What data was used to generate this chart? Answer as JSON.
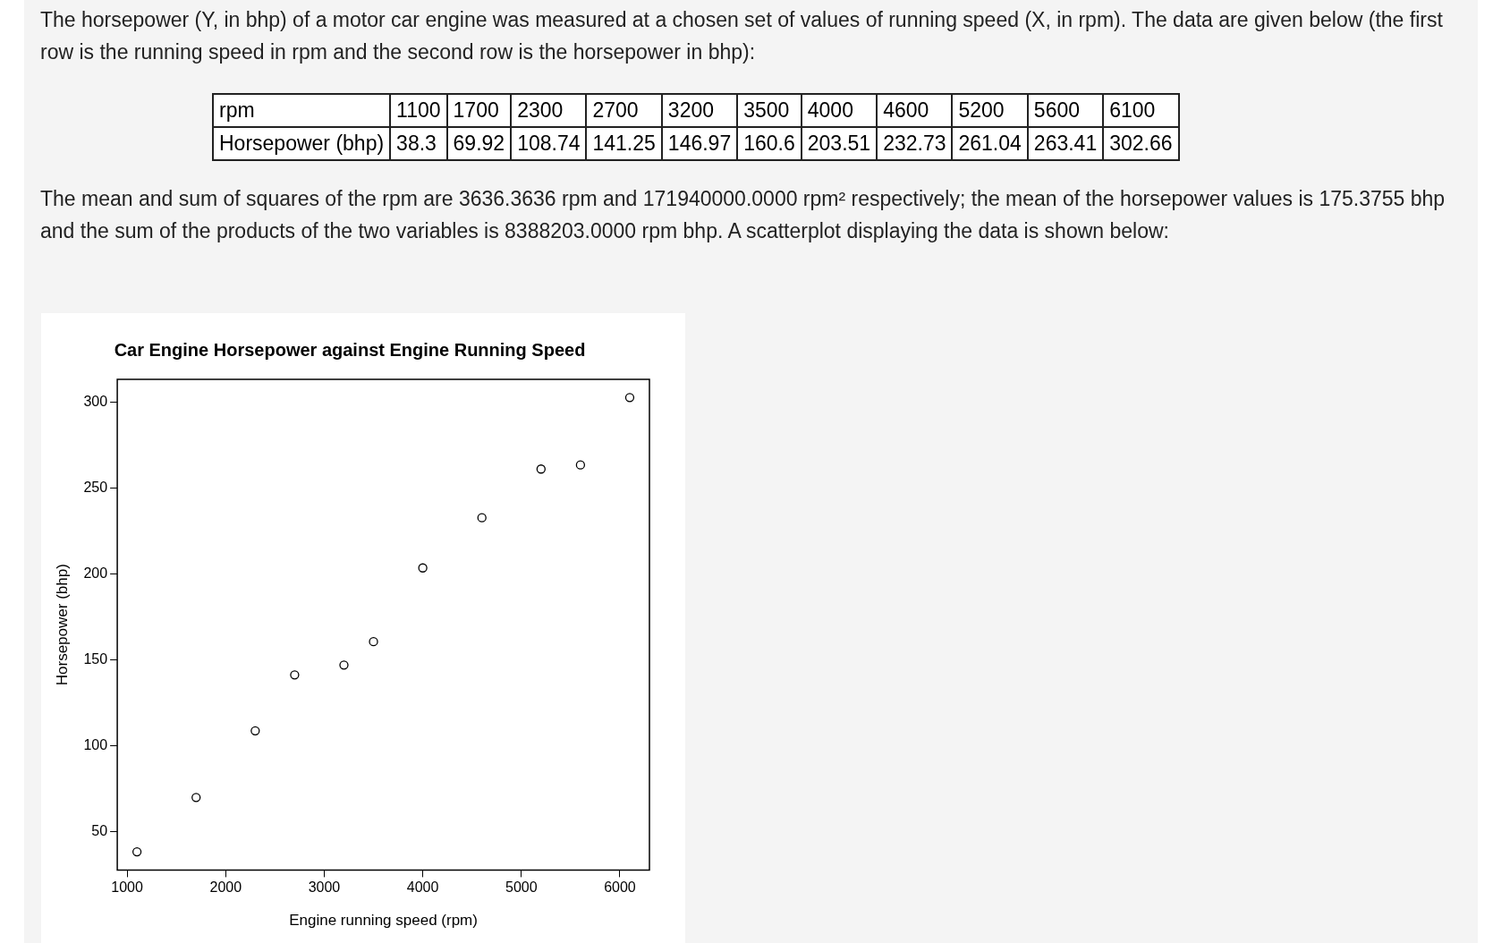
{
  "chart_data": {
    "type": "scatter",
    "title": "Car Engine Horsepower against Engine Running Speed",
    "xlabel": "Engine running speed (rpm)",
    "ylabel": "Horsepower (bhp)",
    "annotations": [
      "The horsepower (Y, in bhp) of a motor car engine was measured at a chosen set of values of running speed (X, in rpm). The data are given below (the first row is the running speed in rpm and the second row is the horsepower in bhp):",
      "rpm",
      "1100",
      "1700",
      "2300",
      "2700",
      "3200",
      "3500",
      "4000",
      "4600",
      "5200",
      "5600",
      "6100",
      "Horsepower (bhp)",
      "38.3",
      "69.92",
      "108.74",
      "141.25",
      "146.97",
      "160.6",
      "203.51",
      "232.73",
      "261.04",
      "263.41",
      "302.66",
      "The mean and sum of squares of the rpm are 3636.3636 rpm and 171940000.0000 rpm² respectively; the mean of the horsepower values is 175.3755 bhp and the sum of the products of the two variables is 8388203.0000 rpm bhp. A scatterplot displaying the data is shown below:"
    ],
    "x": [
      1100,
      1700,
      2300,
      2700,
      3200,
      3500,
      4000,
      4600,
      5200,
      5600,
      6100
    ],
    "values": [
      38.3,
      69.92,
      108.74,
      141.25,
      146.97,
      160.6,
      203.51,
      232.73,
      261.04,
      263.41,
      302.66
    ],
    "color": "#000000",
    "marker": "circle",
    "xlim": [
      900,
      6300
    ],
    "xticks": [
      1000,
      2000,
      3000,
      4000,
      5000,
      6000
    ],
    "ylim": [
      27.73,
      313.23
    ],
    "yticks": [
      50,
      100,
      150,
      200,
      250,
      300
    ]
  }
}
